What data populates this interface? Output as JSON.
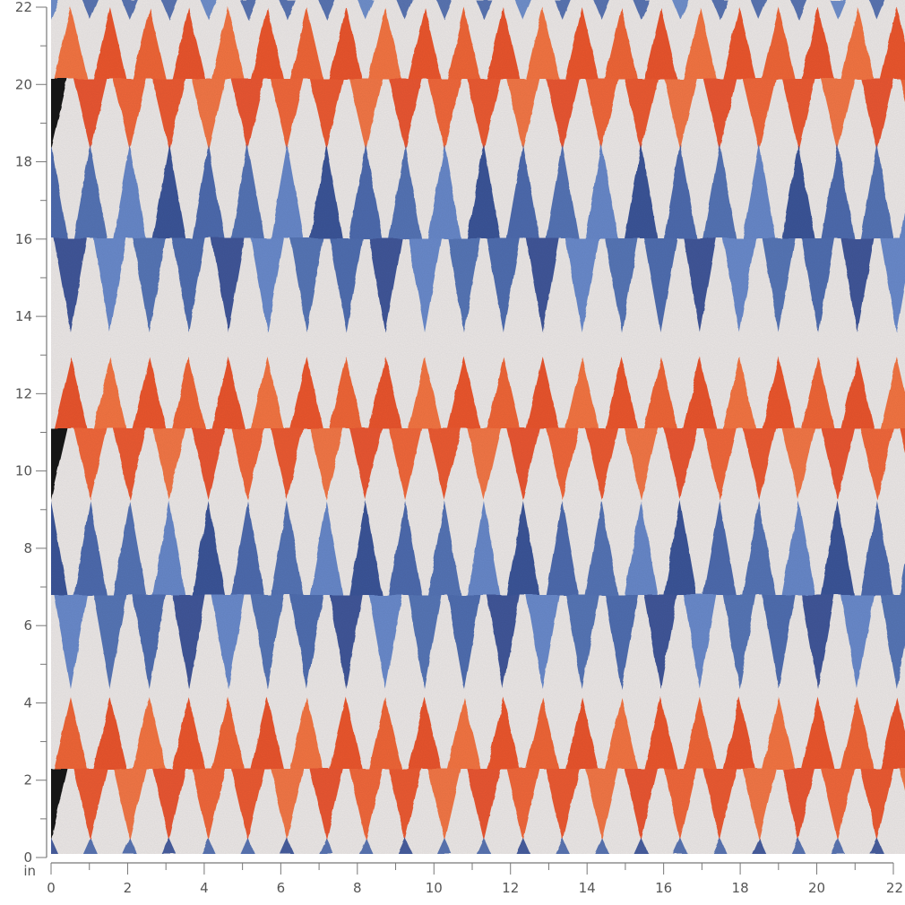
{
  "image": {
    "subject": "watercolor zigzag triangle fabric swatch",
    "palette": {
      "background": "#ebe7e6",
      "orange": "#ea4a1f",
      "orange_light": "#f26a35",
      "blue": "#3f5fa8",
      "blue_dark": "#2b4690",
      "blue_light": "#5b7fc6"
    },
    "bands_from_top": [
      "orange",
      "orange",
      "blue",
      "blue",
      "orange",
      "orange",
      "blue",
      "blue",
      "orange",
      "orange"
    ]
  },
  "ruler": {
    "unit_label": "in",
    "max": 22,
    "y_labels": [
      "0",
      "2",
      "4",
      "6",
      "8",
      "10",
      "12",
      "14",
      "16",
      "18",
      "20",
      "22"
    ],
    "x_labels": [
      "0",
      "2",
      "4",
      "6",
      "8",
      "10",
      "12",
      "14",
      "16",
      "18",
      "20",
      "22"
    ]
  }
}
